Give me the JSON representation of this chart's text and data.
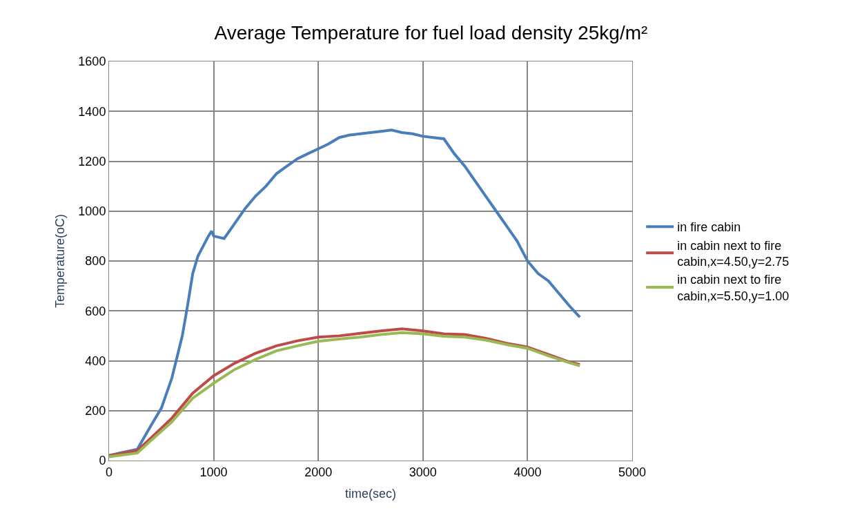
{
  "chart_data": {
    "type": "line",
    "title": "Average Temperature for fuel load density 25kg/m²",
    "xlabel": "time(sec)",
    "ylabel": "Temperature(oC)",
    "xlim": [
      0,
      5000
    ],
    "xticks": [
      0,
      1000,
      2000,
      3000,
      4000,
      5000
    ],
    "ylim": [
      0,
      1600
    ],
    "yticks": [
      0,
      200,
      400,
      600,
      800,
      1000,
      1200,
      1400,
      1600
    ],
    "grid": true,
    "legend": "right",
    "marker": "none",
    "line_style": "solid",
    "series": [
      {
        "name": "in fire cabin",
        "color": "#4a7ebb",
        "x": [
          0,
          100,
          270,
          400,
          500,
          600,
          700,
          750,
          800,
          850,
          900,
          950,
          980,
          1000,
          1100,
          1200,
          1300,
          1400,
          1500,
          1600,
          1700,
          1800,
          1900,
          2000,
          2100,
          2200,
          2300,
          2400,
          2500,
          2600,
          2700,
          2800,
          2900,
          3000,
          3100,
          3200,
          3300,
          3400,
          3500,
          3600,
          3700,
          3800,
          3900,
          4000,
          4100,
          4200,
          4300,
          4400,
          4500
        ],
        "values": [
          20,
          30,
          45,
          140,
          210,
          330,
          500,
          620,
          750,
          820,
          860,
          900,
          920,
          900,
          890,
          950,
          1010,
          1060,
          1100,
          1150,
          1180,
          1210,
          1230,
          1250,
          1270,
          1295,
          1305,
          1310,
          1315,
          1320,
          1325,
          1315,
          1310,
          1300,
          1295,
          1290,
          1230,
          1180,
          1120,
          1060,
          1000,
          940,
          880,
          800,
          750,
          720,
          670,
          620,
          575
        ]
      },
      {
        "name": "in cabin next to fire cabin,x=4.50,y=2.75",
        "color": "#be4b48",
        "x": [
          0,
          270,
          400,
          600,
          800,
          1000,
          1200,
          1400,
          1600,
          1800,
          2000,
          2200,
          2400,
          2600,
          2800,
          3000,
          3200,
          3400,
          3600,
          3800,
          4000,
          4200,
          4400,
          4500
        ],
        "values": [
          20,
          40,
          90,
          170,
          270,
          340,
          390,
          430,
          460,
          480,
          495,
          500,
          510,
          520,
          528,
          520,
          508,
          505,
          490,
          470,
          455,
          425,
          395,
          385
        ]
      },
      {
        "name": "in cabin next to fire cabin,x=5.50,y=1.00",
        "color": "#98b954",
        "x": [
          0,
          270,
          400,
          600,
          800,
          1000,
          1200,
          1400,
          1600,
          1800,
          2000,
          2200,
          2400,
          2600,
          2800,
          3000,
          3200,
          3400,
          3600,
          3800,
          4000,
          4200,
          4400,
          4500
        ],
        "values": [
          15,
          30,
          80,
          155,
          250,
          310,
          365,
          405,
          440,
          460,
          478,
          487,
          495,
          505,
          513,
          508,
          498,
          495,
          483,
          465,
          450,
          420,
          392,
          380
        ]
      }
    ]
  }
}
